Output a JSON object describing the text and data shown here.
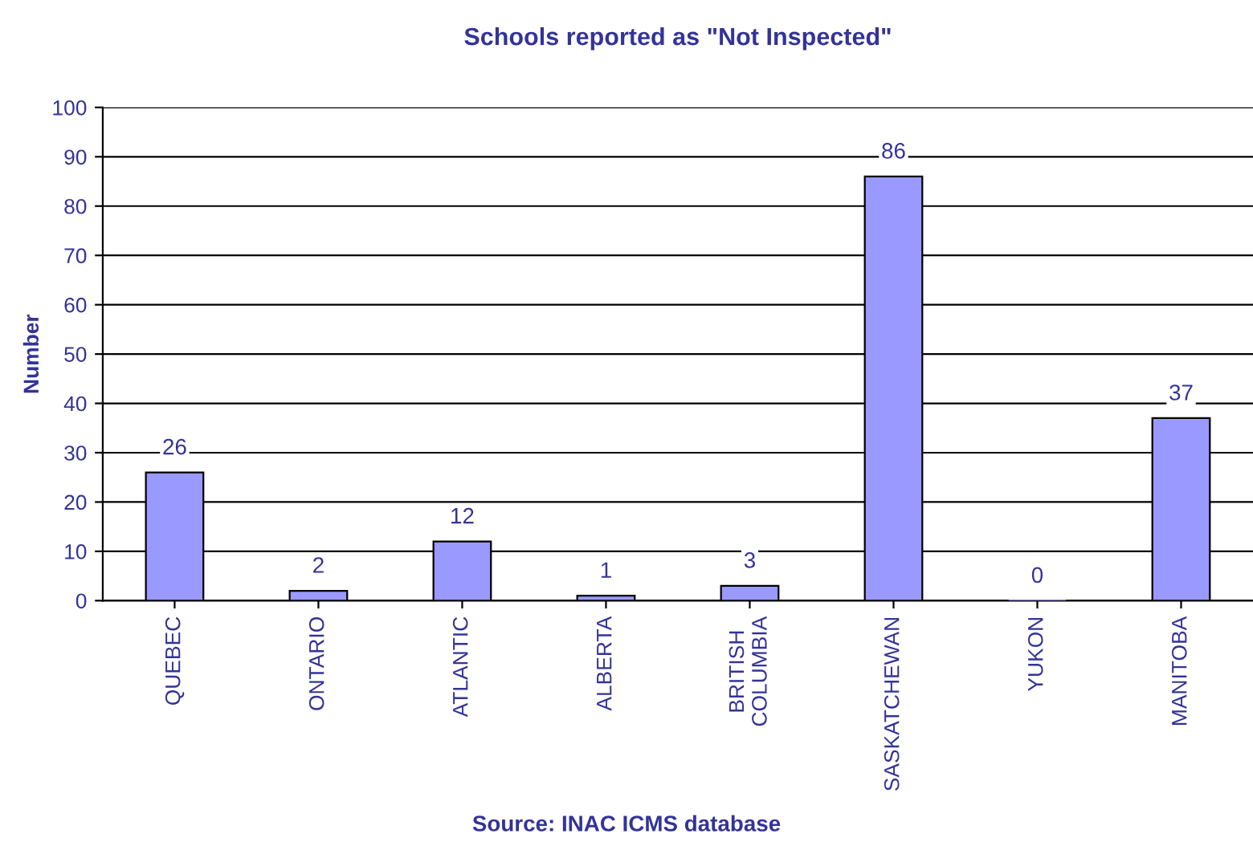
{
  "chart_data": {
    "type": "bar",
    "title": "Schools reported as \"Not Inspected\"",
    "ylabel": "Number",
    "categories": [
      "QUEBEC",
      "ONTARIO",
      "ATLANTIC",
      "ALBERTA",
      "BRITISH\nCOLUMBIA",
      "SASKATCHEWAN",
      "YUKON",
      "MANITOBA"
    ],
    "values": [
      26,
      2,
      12,
      1,
      3,
      86,
      0,
      37
    ],
    "color": "#9999ff",
    "ylim": [
      0,
      100
    ],
    "yticks": [
      0,
      10,
      20,
      30,
      40,
      50,
      60,
      70,
      80,
      90,
      100
    ],
    "grid": "y",
    "data_labels": true,
    "annotations": [
      "Source: INAC ICMS database"
    ]
  }
}
